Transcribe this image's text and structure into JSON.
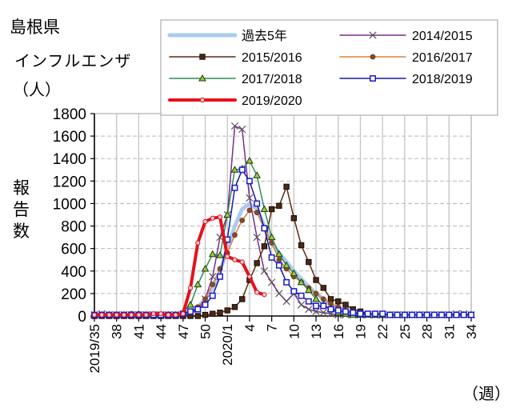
{
  "header": {
    "prefecture": "島根県",
    "disease": "インフルエンザ",
    "unit": "（人）"
  },
  "axis": {
    "ylabel": "報告数",
    "xunit": "（週）"
  },
  "chart_data": {
    "type": "line",
    "title": "島根県 インフルエンザ",
    "ylabel": "報告数（人）",
    "xlabel": "（週）",
    "ylim": [
      0,
      1800
    ],
    "yticks": [
      0,
      200,
      400,
      600,
      800,
      1000,
      1200,
      1400,
      1600,
      1800
    ],
    "grid": true,
    "legend_position": "top-right",
    "x_tick_labels": [
      "2019/35",
      "38",
      "41",
      "44",
      "47",
      "50",
      "2020/1",
      "4",
      "7",
      "10",
      "13",
      "16",
      "19",
      "22",
      "25",
      "28",
      "31",
      "34"
    ],
    "x": [
      35,
      36,
      37,
      38,
      39,
      40,
      41,
      42,
      43,
      44,
      45,
      46,
      47,
      48,
      49,
      50,
      51,
      52,
      1,
      2,
      3,
      4,
      5,
      6,
      7,
      8,
      9,
      10,
      11,
      12,
      13,
      14,
      15,
      16,
      17,
      18,
      19,
      20,
      21,
      22,
      23,
      24,
      25,
      26,
      27,
      28,
      29,
      30,
      31,
      32,
      33,
      34
    ],
    "series": [
      {
        "name": "過去5年",
        "color": "#a9cdf0",
        "marker": "none",
        "width": 5,
        "values": [
          10,
          10,
          10,
          10,
          10,
          10,
          10,
          10,
          10,
          10,
          10,
          10,
          20,
          40,
          80,
          150,
          250,
          400,
          600,
          800,
          950,
          1000,
          950,
          800,
          650,
          560,
          480,
          400,
          330,
          260,
          200,
          150,
          100,
          70,
          50,
          30,
          20,
          15,
          10,
          10,
          10,
          10,
          10,
          10,
          10,
          10,
          10,
          10,
          10,
          10,
          10,
          10
        ]
      },
      {
        "name": "2014/2015",
        "color": "#7b2c8e",
        "marker": "x",
        "width": 1.5,
        "values": [
          10,
          20,
          10,
          10,
          10,
          10,
          10,
          10,
          10,
          10,
          10,
          10,
          10,
          20,
          60,
          150,
          350,
          700,
          900,
          1690,
          1660,
          1050,
          700,
          400,
          300,
          200,
          130,
          200,
          100,
          60,
          40,
          30,
          20,
          10,
          10,
          10,
          10,
          10,
          10,
          10,
          10,
          10,
          10,
          10,
          10,
          10,
          10,
          10,
          10,
          20,
          20,
          10
        ]
      },
      {
        "name": "2015/2016",
        "color": "#5a2c10",
        "marker": "square-filled",
        "width": 1.5,
        "values": [
          0,
          0,
          0,
          0,
          0,
          0,
          0,
          0,
          0,
          0,
          0,
          0,
          0,
          0,
          0,
          10,
          20,
          30,
          50,
          80,
          150,
          320,
          470,
          620,
          950,
          980,
          1150,
          870,
          630,
          480,
          320,
          250,
          150,
          130,
          100,
          60,
          40,
          20,
          10,
          10,
          10,
          10,
          10,
          10,
          10,
          10,
          10,
          10,
          10,
          10,
          10,
          10
        ]
      },
      {
        "name": "2016/2017",
        "color": "#e0803a",
        "marker": "circle-filled",
        "width": 1.5,
        "values": [
          10,
          10,
          10,
          10,
          10,
          20,
          20,
          10,
          10,
          10,
          10,
          10,
          20,
          40,
          80,
          150,
          280,
          420,
          560,
          720,
          850,
          940,
          920,
          780,
          650,
          500,
          420,
          350,
          300,
          250,
          200,
          150,
          110,
          80,
          50,
          30,
          20,
          10,
          10,
          10,
          10,
          10,
          10,
          10,
          10,
          10,
          10,
          10,
          10,
          10,
          10,
          10
        ]
      },
      {
        "name": "2017/2018",
        "color": "#2e8b57",
        "marker": "triangle",
        "width": 1.5,
        "values": [
          10,
          10,
          10,
          10,
          10,
          10,
          10,
          10,
          10,
          10,
          10,
          10,
          30,
          100,
          280,
          420,
          550,
          540,
          900,
          1300,
          1310,
          1380,
          1250,
          950,
          700,
          550,
          450,
          380,
          300,
          230,
          150,
          100,
          60,
          30,
          20,
          10,
          10,
          10,
          10,
          10,
          10,
          10,
          10,
          10,
          10,
          10,
          10,
          10,
          10,
          10,
          10,
          10
        ]
      },
      {
        "name": "2018/2019",
        "color": "#1a1aa0",
        "marker": "square-open",
        "width": 1.5,
        "values": [
          10,
          10,
          10,
          10,
          10,
          10,
          10,
          10,
          10,
          10,
          10,
          10,
          20,
          40,
          60,
          100,
          180,
          350,
          680,
          1140,
          1300,
          1200,
          1000,
          780,
          520,
          450,
          300,
          220,
          180,
          130,
          90,
          90,
          60,
          50,
          40,
          30,
          20,
          20,
          20,
          20,
          10,
          10,
          10,
          10,
          10,
          10,
          10,
          10,
          10,
          10,
          10,
          10
        ]
      },
      {
        "name": "2019/2020",
        "color": "#e8101a",
        "marker": "circle-open",
        "width": 4,
        "values": [
          10,
          10,
          10,
          10,
          10,
          10,
          10,
          10,
          20,
          20,
          10,
          10,
          20,
          250,
          650,
          840,
          870,
          880,
          530,
          500,
          480,
          350,
          210,
          190
        ]
      }
    ]
  },
  "legend": {
    "items": [
      {
        "label": "過去5年"
      },
      {
        "label": "2014/2015"
      },
      {
        "label": "2015/2016"
      },
      {
        "label": "2016/2017"
      },
      {
        "label": "2017/2018"
      },
      {
        "label": "2018/2019"
      },
      {
        "label": "2019/2020"
      }
    ]
  }
}
